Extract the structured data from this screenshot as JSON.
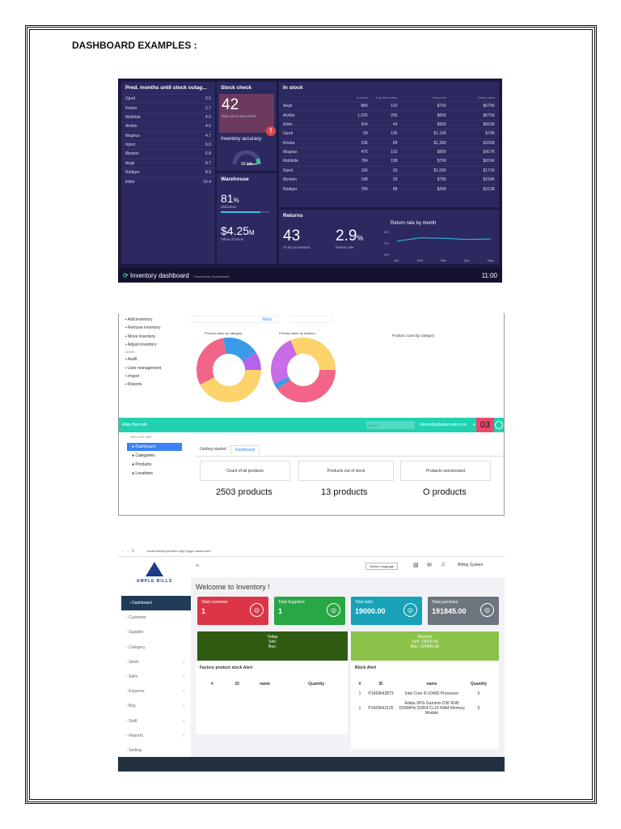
{
  "heading": "DASHBOARD EXAMPLES :",
  "shot1": {
    "pred_title": "Pred. months until stock outag...",
    "pred_rows": [
      {
        "name": "Gjord",
        "val": "0.5"
      },
      {
        "name": "Kindra",
        "val": "2.7"
      },
      {
        "name": "Mathilde",
        "val": "4.0"
      },
      {
        "name": "Alvilde",
        "val": "4.0"
      },
      {
        "name": "Magnus",
        "val": "4.7"
      },
      {
        "name": "Njord",
        "val": "6.0"
      },
      {
        "name": "Øystein",
        "val": "6.8"
      },
      {
        "name": "Aegir",
        "val": "8.7"
      },
      {
        "name": "Rüdiger",
        "val": "8.9"
      },
      {
        "name": "Ebbe",
        "val": "16.4"
      }
    ],
    "stock_check_title": "Stock check",
    "stock_check_value": "42",
    "stock_check_sub": "days since last check",
    "accuracy_title": "Inventory accuracy",
    "accuracy_value": "99.1%",
    "accuracy_fraction": 0.991,
    "warehouse_title": "Warehouse",
    "utilization_value": "81",
    "utilization_unit": "%",
    "utilization_label": "Utilization",
    "utilization_fraction": 0.81,
    "value_stock": "$4.25",
    "value_unit": "M",
    "value_label": "Value of stock",
    "instock_title": "In stock",
    "instock_headers": [
      "",
      "In stock",
      "Avg 30d orders",
      "Unit price",
      "Stock value"
    ],
    "instock_rows": [
      [
        "Aegir",
        "889",
        "102",
        "$759",
        "$675K"
      ],
      [
        "Alvilde",
        "1,025",
        "256",
        "$659",
        "$675K"
      ],
      [
        "Ebbe",
        "604",
        "49",
        "$999",
        "$603K"
      ],
      [
        "Gjurd",
        "58",
        "126",
        "$1,199",
        "$70K"
      ],
      [
        "Kindra",
        "236",
        "88",
        "$1,399",
        "$330K"
      ],
      [
        "Magnus",
        "475",
        "102",
        "$899",
        "$427K"
      ],
      [
        "Mathilde",
        "784",
        "198",
        "$799",
        "$626K"
      ],
      [
        "Njord",
        "156",
        "26",
        "$1,099",
        "$171K"
      ],
      [
        "Øystein",
        "198",
        "29",
        "$799",
        "$158K"
      ],
      [
        "Rüdiger",
        "784",
        "88",
        "$399",
        "$313K"
      ]
    ],
    "returns_title": "Returns",
    "returns_value": "43",
    "returns_label": "To be processed",
    "rate_value": "2.9",
    "rate_unit": "%",
    "rate_label": "Return rate",
    "chart_title": "Return rate by month",
    "footer_title": "Inventory dashboard",
    "footer_powered": "Powered by Geckoboard",
    "footer_time": "11:00"
  },
  "chart_data": {
    "type": "line",
    "title": "Return rate by month",
    "categories": [
      "Jan",
      "Feb",
      "Mar",
      "Apr",
      "May"
    ],
    "y_ticks": [
      "4%",
      "2%",
      "0%"
    ],
    "ylim": [
      0,
      4
    ],
    "values": [
      2.3,
      2.9,
      2.8,
      2.6,
      2.7
    ]
  },
  "shot2": {
    "menu": [
      "Add inventory",
      "Remove inventory",
      "Move inventory",
      "Adjust inventory",
      "ADMIN",
      "Audit",
      "User management",
      "Import",
      "Reports"
    ],
    "more": "More",
    "donut1_title": "Product value by category",
    "donut2_title": "Product value by location",
    "count_title": "Product count by category",
    "brand": "Atlas Barcode",
    "search_placeholder": "Search",
    "user_email": "simon@atlasbarcode.com",
    "badge": "03",
    "crumb": "AREA OUT SIDE",
    "nav": [
      "Dashboard",
      "Categories",
      "Products",
      "Locations"
    ],
    "tabs": [
      "Getting started",
      "Dashboard"
    ],
    "cards": [
      "Count of all products",
      "Products out of stock",
      "Products overstocked"
    ],
    "counts": [
      "2503 products",
      "13 products",
      "O products"
    ]
  },
  "shot3": {
    "url": "localhost/ample/index.php?page=dashboard",
    "logo": "AMPLE BILLS",
    "lang": "Select Language",
    "user": "Billing System",
    "welcome": "Welcome to Inventory !",
    "menu": [
      "Dashboard",
      "Customer",
      "Supplier",
      "Category",
      "Stock",
      "Sells",
      "Expense",
      "Buy",
      "Staff",
      "Reports",
      "Setting"
    ],
    "tiles": [
      {
        "label": "Total customer",
        "value": "1",
        "color": "#dc3545"
      },
      {
        "label": "Total Suppliers",
        "value": "1",
        "color": "#28a745"
      },
      {
        "label": "Total sells",
        "value": "19000.00",
        "color": "#17a2b8"
      },
      {
        "label": "Total purchase",
        "value": "191845.00",
        "color": "#6c757d"
      }
    ],
    "today": {
      "title": "Today",
      "sell": "Sell:",
      "buy": "Buy:"
    },
    "monthly": {
      "title": "Monthly",
      "sell": "Sell: 19000.00",
      "buy": "Buy: 191845.00"
    },
    "factory_title": "Factory product stock Alert",
    "block_title": "Block Alert",
    "table_headers": [
      "#",
      "ID",
      "name",
      "Quantity"
    ],
    "block_rows": [
      [
        "1",
        "P1669642873",
        "Intel Core i5-10400 Processor",
        "0"
      ],
      [
        "1",
        "P1669642125",
        "Adata XPG Gammix D30 8GB 3200MHz DDR4 CL16 RAM Memory Module",
        "0"
      ]
    ]
  }
}
